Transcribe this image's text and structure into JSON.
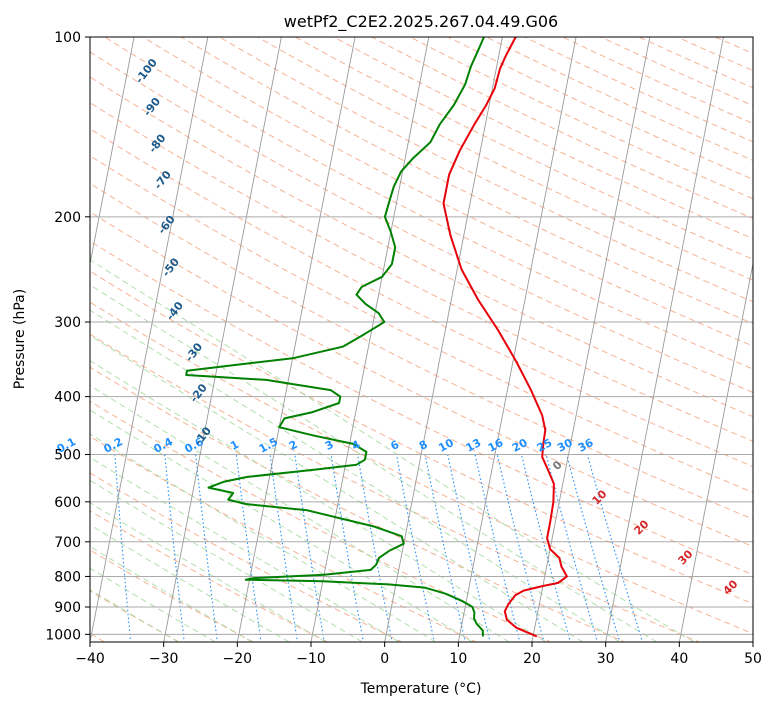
{
  "chart_data": {
    "type": "line",
    "title": "wetPf2_C2E2.2025.267.04.49.G06",
    "xlabel": "Temperature (°C)",
    "ylabel": "Pressure (hPa)",
    "xlim": [
      -40,
      50
    ],
    "ylim": [
      1030,
      100
    ],
    "y_scale": "log",
    "grid": true,
    "xticks": [
      -40,
      -30,
      -20,
      -10,
      0,
      10,
      20,
      30,
      40,
      50
    ],
    "yticks": [
      100,
      200,
      300,
      400,
      500,
      600,
      700,
      800,
      900,
      1000
    ],
    "series": [
      {
        "color": "#e8000b",
        "points": [
          [
            1008,
            20.5
          ],
          [
            975,
            17.5
          ],
          [
            945,
            16
          ],
          [
            915,
            15.5
          ],
          [
            890,
            15.8
          ],
          [
            860,
            16.5
          ],
          [
            845,
            17.5
          ],
          [
            830,
            20
          ],
          [
            820,
            22
          ],
          [
            800,
            23
          ],
          [
            770,
            22
          ],
          [
            745,
            21.5
          ],
          [
            720,
            20
          ],
          [
            690,
            19.3
          ],
          [
            650,
            19.3
          ],
          [
            600,
            19.2
          ],
          [
            560,
            18.8
          ],
          [
            530,
            17.6
          ],
          [
            505,
            16.5
          ],
          [
            480,
            16.3
          ],
          [
            455,
            16.2
          ],
          [
            430,
            15.4
          ],
          [
            390,
            13.2
          ],
          [
            350,
            10.5
          ],
          [
            310,
            7.2
          ],
          [
            275,
            3.6
          ],
          [
            245,
            0.6
          ],
          [
            215,
            -1.8
          ],
          [
            190,
            -3.6
          ],
          [
            170,
            -3.6
          ],
          [
            155,
            -2.8
          ],
          [
            140,
            -1.5
          ],
          [
            130,
            -0.4
          ],
          [
            122,
            0.3
          ],
          [
            113,
            0.5
          ],
          [
            107,
            1
          ],
          [
            100,
            1.8
          ]
        ]
      },
      {
        "color": "#008000",
        "points": [
          [
            1008,
            13.2
          ],
          [
            985,
            13
          ],
          [
            960,
            12
          ],
          [
            940,
            11.5
          ],
          [
            920,
            11.4
          ],
          [
            900,
            11
          ],
          [
            880,
            9.5
          ],
          [
            855,
            7
          ],
          [
            835,
            4
          ],
          [
            825,
            -1
          ],
          [
            815,
            -10
          ],
          [
            810,
            -20.5
          ],
          [
            805,
            -19.5
          ],
          [
            795,
            -10
          ],
          [
            780,
            -3.8
          ],
          [
            765,
            -3.2
          ],
          [
            745,
            -3
          ],
          [
            725,
            -1.8
          ],
          [
            705,
            0
          ],
          [
            685,
            -0.5
          ],
          [
            660,
            -4.5
          ],
          [
            620,
            -14
          ],
          [
            605,
            -22.5
          ],
          [
            595,
            -25
          ],
          [
            580,
            -24.5
          ],
          [
            568,
            -28
          ],
          [
            555,
            -26
          ],
          [
            545,
            -23
          ],
          [
            530,
            -14
          ],
          [
            520,
            -8.5
          ],
          [
            510,
            -7.5
          ],
          [
            495,
            -7.5
          ],
          [
            480,
            -9.5
          ],
          [
            465,
            -15
          ],
          [
            450,
            -20
          ],
          [
            435,
            -19.5
          ],
          [
            425,
            -16
          ],
          [
            410,
            -12.5
          ],
          [
            400,
            -12.5
          ],
          [
            390,
            -14
          ],
          [
            375,
            -23
          ],
          [
            368,
            -34
          ],
          [
            362,
            -34
          ],
          [
            352,
            -26
          ],
          [
            345,
            -20
          ],
          [
            330,
            -13.5
          ],
          [
            315,
            -11
          ],
          [
            300,
            -8.5
          ],
          [
            290,
            -9.5
          ],
          [
            280,
            -11.5
          ],
          [
            270,
            -13
          ],
          [
            262,
            -12.5
          ],
          [
            252,
            -10
          ],
          [
            240,
            -9
          ],
          [
            225,
            -9
          ],
          [
            212,
            -10
          ],
          [
            200,
            -11.2
          ],
          [
            188,
            -11
          ],
          [
            178,
            -10.8
          ],
          [
            168,
            -10.2
          ],
          [
            160,
            -9
          ],
          [
            150,
            -7
          ],
          [
            140,
            -6.2
          ],
          [
            130,
            -4.8
          ],
          [
            120,
            -3.8
          ],
          [
            112,
            -3.5
          ],
          [
            106,
            -3
          ],
          [
            100,
            -2.5
          ]
        ]
      }
    ],
    "dry_adiabat_labels": [
      "-100",
      "-90",
      "-80",
      "-70",
      "-60",
      "-50",
      "-40",
      "-30",
      "-20",
      "-10"
    ],
    "mixing_ratio_labels": [
      "0.1",
      "0.2",
      "0.4",
      "0.6",
      "1",
      "1.5",
      "2",
      "3",
      "4",
      "6",
      "8",
      "10",
      "13",
      "16",
      "20",
      "25",
      "30",
      "36"
    ],
    "isotherm_labels": [
      "0",
      "10",
      "20",
      "30",
      "40"
    ]
  }
}
